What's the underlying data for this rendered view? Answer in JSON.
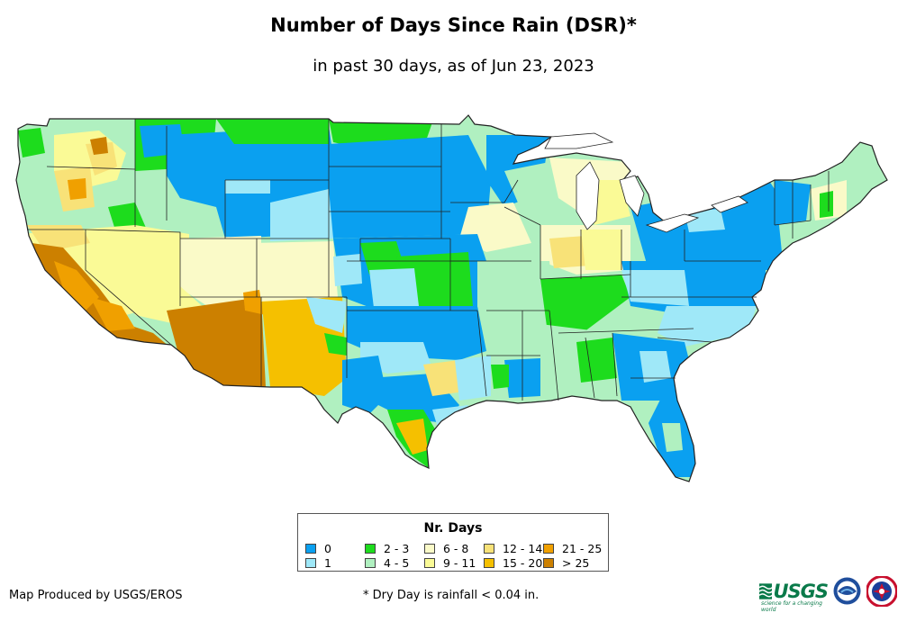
{
  "title": "Number of Days Since Rain (DSR)*",
  "subtitle": "in past 30 days, as of Jun 23, 2023",
  "legend": {
    "title": "Nr. Days",
    "items": [
      {
        "label": "0",
        "color": "#0aa0f0"
      },
      {
        "label": "1",
        "color": "#9fe8f8"
      },
      {
        "label": "2 - 3",
        "color": "#1ddc1d"
      },
      {
        "label": "4 - 5",
        "color": "#b0f0c0"
      },
      {
        "label": "6 - 8",
        "color": "#fafac8"
      },
      {
        "label": "9 - 11",
        "color": "#fafa96"
      },
      {
        "label": "12 - 14",
        "color": "#f8e278"
      },
      {
        "label": "15 - 20",
        "color": "#f5c000"
      },
      {
        "label": "21 - 25",
        "color": "#f0a000"
      },
      {
        "label": "> 25",
        "color": "#cc8000"
      }
    ]
  },
  "credit": "Map Produced by USGS/EROS",
  "footnote": "* Dry Day is rainfall < 0.04 in.",
  "logos": {
    "usgs": {
      "text": "USGS",
      "tagline": "science for a changing world",
      "icon": "usgs-wave-icon"
    },
    "noaa": {
      "icon": "noaa-seal-icon"
    },
    "nws": {
      "icon": "nws-seal-icon"
    }
  }
}
